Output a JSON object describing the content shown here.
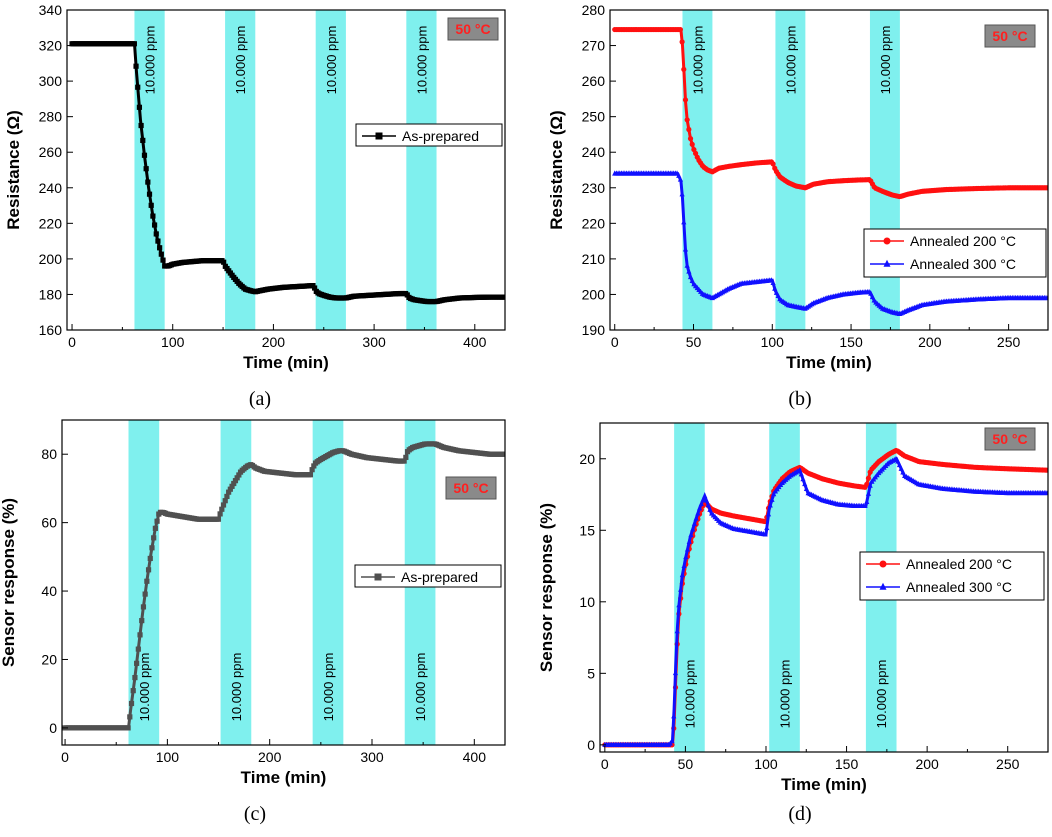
{
  "colors": {
    "band": "#7ff0ee",
    "black_series": "#000000",
    "gray_series": "#505050",
    "red_series": "#ff1010",
    "blue_series": "#1010ff",
    "badge_bg": "#8a8a8a",
    "badge_text": "#ff2020"
  },
  "chart_data": [
    {
      "id": "a",
      "type": "line",
      "caption": "(a)",
      "xlabel": "Time (min)",
      "ylabel": "Resistance (Ω)",
      "xlim": [
        -5,
        430
      ],
      "ylim": [
        160,
        340
      ],
      "xticks": [
        0,
        100,
        200,
        300,
        400
      ],
      "yticks": [
        160,
        180,
        200,
        220,
        240,
        260,
        280,
        300,
        320,
        340
      ],
      "badge": "50 °C",
      "badge_position": "top-right",
      "legend_position": "middle-right",
      "gas_exposures": [
        {
          "start": 62,
          "end": 92,
          "label": "10.000 ppm"
        },
        {
          "start": 152,
          "end": 182,
          "label": "10.000 ppm"
        },
        {
          "start": 242,
          "end": 272,
          "label": "10.000 ppm"
        },
        {
          "start": 332,
          "end": 362,
          "label": "10.000 ppm"
        }
      ],
      "series": [
        {
          "name": "As-prepared",
          "color": "#000000",
          "marker": "square",
          "x": [
            0,
            62,
            64,
            68,
            72,
            76,
            80,
            84,
            88,
            92,
            96,
            100,
            110,
            120,
            130,
            140,
            150,
            152,
            156,
            160,
            166,
            172,
            178,
            182,
            186,
            195,
            210,
            225,
            240,
            242,
            245,
            250,
            256,
            262,
            268,
            272,
            280,
            295,
            310,
            325,
            332,
            335,
            340,
            346,
            352,
            358,
            362,
            370,
            385,
            400,
            415,
            430
          ],
          "y": [
            321,
            321,
            305,
            278,
            258,
            240,
            225,
            213,
            204,
            196,
            196,
            197,
            198,
            198.5,
            199,
            199,
            199,
            196,
            193,
            190,
            186,
            183,
            182,
            181.5,
            182,
            183,
            184,
            184.5,
            185,
            182,
            180.5,
            179.5,
            178.5,
            178,
            178,
            178,
            179,
            179.5,
            180,
            180.5,
            180.5,
            178,
            177,
            176.5,
            176,
            176,
            176,
            177,
            178,
            178.3,
            178.5,
            178.5
          ]
        }
      ]
    },
    {
      "id": "b",
      "type": "line",
      "caption": "(b)",
      "xlabel": "Time (min)",
      "ylabel": "Resistance (Ω)",
      "xlim": [
        -3,
        275
      ],
      "ylim": [
        190,
        280
      ],
      "xticks": [
        0,
        50,
        100,
        150,
        200,
        250
      ],
      "yticks": [
        190,
        200,
        210,
        220,
        230,
        240,
        250,
        260,
        270,
        280
      ],
      "badge": "50 °C",
      "badge_position": "top-right",
      "legend_position": "bottom-right",
      "gas_exposures": [
        {
          "start": 43,
          "end": 62,
          "label": "10.000 ppm"
        },
        {
          "start": 102,
          "end": 121,
          "label": "10.000 ppm"
        },
        {
          "start": 162,
          "end": 181,
          "label": "10.000 ppm"
        }
      ],
      "series": [
        {
          "name": "Annealed 200 °C",
          "color": "#ff1010",
          "marker": "circle",
          "x": [
            0,
            42,
            43,
            44,
            45,
            46,
            48,
            50,
            53,
            56,
            59,
            62,
            66,
            72,
            80,
            90,
            100,
            102,
            105,
            110,
            115,
            121,
            126,
            135,
            145,
            155,
            162,
            165,
            170,
            176,
            181,
            186,
            195,
            210,
            230,
            250,
            275
          ],
          "y": [
            274.5,
            274.5,
            270,
            262,
            254,
            249,
            244,
            241,
            238,
            236,
            235,
            234.5,
            235.5,
            236,
            236.5,
            237,
            237.3,
            235,
            233,
            231.5,
            230.5,
            230,
            231,
            231.7,
            232,
            232.2,
            232.3,
            230,
            229,
            228,
            227.5,
            228.2,
            229,
            229.5,
            229.8,
            230,
            230
          ]
        },
        {
          "name": "Annealed 300 °C",
          "color": "#1010ff",
          "marker": "triangle",
          "x": [
            0,
            40,
            42,
            43,
            44,
            45,
            46,
            48,
            50,
            53,
            56,
            59,
            62,
            66,
            72,
            80,
            90,
            100,
            102,
            105,
            110,
            115,
            121,
            126,
            135,
            145,
            155,
            162,
            165,
            170,
            176,
            181,
            186,
            195,
            210,
            230,
            250,
            275
          ],
          "y": [
            234,
            234,
            232,
            227,
            219,
            212,
            208,
            205,
            203,
            201.5,
            200,
            199.5,
            199,
            200,
            201.5,
            203,
            203.5,
            204,
            201,
            198.5,
            197,
            196.5,
            196,
            197.5,
            199,
            200,
            200.5,
            200.7,
            198,
            196,
            195,
            194.5,
            195.5,
            197,
            198,
            198.6,
            199,
            199
          ]
        }
      ]
    },
    {
      "id": "c",
      "type": "line",
      "caption": "(c)",
      "xlabel": "Time (min)",
      "ylabel": "Sensor response (%)",
      "xlim": [
        -3,
        430
      ],
      "ylim": [
        -5,
        90
      ],
      "xticks": [
        0,
        100,
        200,
        300,
        400
      ],
      "yticks": [
        0,
        20,
        40,
        60,
        80
      ],
      "badge": "50 °C",
      "badge_position": "upper-right",
      "legend_position": "middle-right",
      "gas_exposures": [
        {
          "start": 62,
          "end": 92,
          "label": "10.000 ppm"
        },
        {
          "start": 152,
          "end": 182,
          "label": "10.000 ppm"
        },
        {
          "start": 242,
          "end": 272,
          "label": "10.000 ppm"
        },
        {
          "start": 332,
          "end": 362,
          "label": "10.000 ppm"
        }
      ],
      "series": [
        {
          "name": "As-prepared",
          "color": "#505050",
          "marker": "square",
          "x": [
            0,
            62,
            64,
            68,
            72,
            76,
            80,
            84,
            88,
            92,
            96,
            100,
            110,
            120,
            130,
            140,
            150,
            152,
            156,
            160,
            166,
            172,
            178,
            182,
            186,
            195,
            210,
            225,
            240,
            242,
            245,
            250,
            256,
            262,
            268,
            272,
            280,
            295,
            310,
            325,
            332,
            335,
            340,
            346,
            352,
            358,
            362,
            370,
            385,
            400,
            415,
            430
          ],
          "y": [
            0,
            0,
            5,
            14,
            24,
            34,
            43,
            51,
            58,
            63,
            63,
            62.5,
            62,
            61.5,
            61,
            61,
            61,
            63,
            66,
            69,
            72,
            75,
            76.5,
            77,
            76,
            75,
            74.5,
            74,
            74,
            76,
            77.5,
            78.5,
            79.5,
            80.5,
            81,
            81,
            80,
            79,
            78.5,
            78,
            78,
            81,
            82,
            82.5,
            83,
            83,
            83,
            82,
            81,
            80.5,
            80,
            80
          ]
        }
      ]
    },
    {
      "id": "d",
      "type": "line",
      "caption": "(d)",
      "xlabel": "Time (min)",
      "ylabel": "Sensor response (%)",
      "xlim": [
        -3,
        275
      ],
      "ylim": [
        -0.5,
        22.5
      ],
      "xticks": [
        0,
        50,
        100,
        150,
        200,
        250
      ],
      "yticks": [
        0,
        5,
        10,
        15,
        20
      ],
      "badge": "50 °C",
      "badge_position": "top-right",
      "legend_position": "middle-right",
      "gas_exposures": [
        {
          "start": 43,
          "end": 62,
          "label": "10.000 ppm"
        },
        {
          "start": 102,
          "end": 121,
          "label": "10.000 ppm"
        },
        {
          "start": 162,
          "end": 181,
          "label": "10.000 ppm"
        }
      ],
      "series": [
        {
          "name": "Annealed 200 °C",
          "color": "#ff1010",
          "marker": "circle",
          "x": [
            0,
            42,
            43,
            44,
            45,
            46,
            48,
            50,
            53,
            56,
            59,
            62,
            66,
            72,
            80,
            90,
            100,
            102,
            105,
            110,
            115,
            121,
            126,
            135,
            145,
            155,
            162,
            165,
            170,
            176,
            181,
            186,
            195,
            210,
            230,
            250,
            275
          ],
          "y": [
            0,
            0,
            1.5,
            4.5,
            7.3,
            9.2,
            11.2,
            12.5,
            14,
            15.2,
            16.2,
            17,
            16.5,
            16.2,
            16,
            15.8,
            15.6,
            16.8,
            17.8,
            18.6,
            19.1,
            19.4,
            19,
            18.6,
            18.3,
            18.1,
            18,
            19.2,
            19.8,
            20.3,
            20.6,
            20.2,
            19.8,
            19.6,
            19.4,
            19.3,
            19.2
          ]
        },
        {
          "name": "Annealed 300 °C",
          "color": "#1010ff",
          "marker": "triangle",
          "x": [
            0,
            40,
            42,
            43,
            44,
            45,
            46,
            48,
            50,
            53,
            56,
            59,
            62,
            66,
            72,
            80,
            90,
            100,
            102,
            105,
            110,
            115,
            121,
            126,
            135,
            145,
            155,
            162,
            165,
            170,
            176,
            181,
            186,
            195,
            210,
            230,
            250,
            275
          ],
          "y": [
            0,
            0,
            0.3,
            2.5,
            5.5,
            8.2,
            9.8,
            11.8,
            13,
            14.5,
            15.6,
            16.6,
            17.4,
            16.2,
            15.5,
            15.1,
            14.9,
            14.7,
            16.5,
            17.6,
            18.3,
            18.8,
            19.2,
            17.6,
            17.1,
            16.8,
            16.7,
            16.7,
            18.3,
            19,
            19.7,
            20,
            18.8,
            18.2,
            17.9,
            17.7,
            17.6,
            17.6
          ]
        }
      ]
    }
  ]
}
